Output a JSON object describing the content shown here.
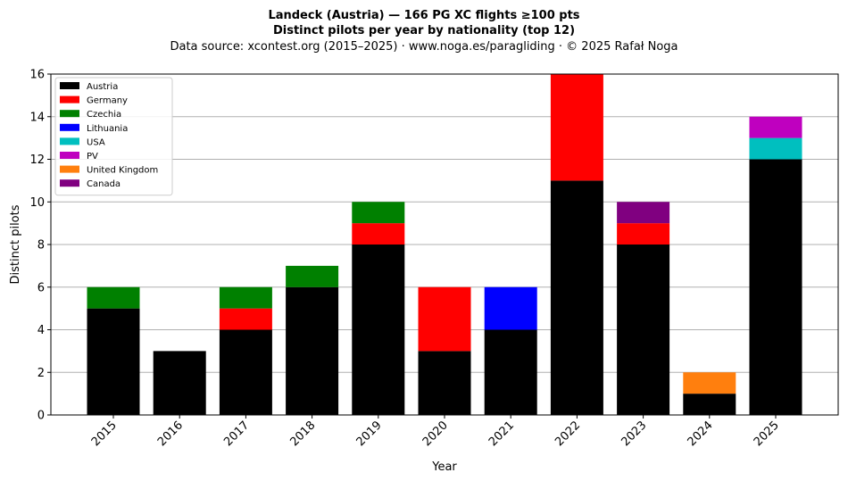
{
  "header": {
    "title_line1": "Landeck (Austria)  —  166 PG XC flights ≥100 pts",
    "title_line2": "Distinct pilots per year by nationality (top 12)",
    "subtitle": "Data source: xcontest.org (2015–2025)  ·  www.noga.es/paragliding  ·  © 2025 Rafał Noga"
  },
  "chart_data": {
    "type": "bar",
    "stacked": true,
    "title": "Landeck (Austria)  —  166 PG XC flights ≥100 pts",
    "subtitle": "Distinct pilots per year by nationality (top 12)",
    "xlabel": "Year",
    "ylabel": "Distinct pilots",
    "ylim": [
      0,
      16
    ],
    "yticks": [
      0,
      2,
      4,
      6,
      8,
      10,
      12,
      14,
      16
    ],
    "grid": "horizontal",
    "legend_position": "top-left",
    "categories": [
      "2015",
      "2016",
      "2017",
      "2018",
      "2019",
      "2020",
      "2021",
      "2022",
      "2023",
      "2024",
      "2025"
    ],
    "series": [
      {
        "name": "Austria",
        "color": "#000000",
        "values": [
          5,
          3,
          4,
          6,
          8,
          3,
          4,
          11,
          8,
          1,
          12
        ]
      },
      {
        "name": "Germany",
        "color": "#ff0000",
        "values": [
          0,
          0,
          1,
          0,
          1,
          3,
          0,
          5,
          1,
          0,
          0
        ]
      },
      {
        "name": "Czechia",
        "color": "#008000",
        "values": [
          1,
          0,
          1,
          1,
          1,
          0,
          0,
          0,
          0,
          0,
          0
        ]
      },
      {
        "name": "Lithuania",
        "color": "#0000ff",
        "values": [
          0,
          0,
          0,
          0,
          0,
          0,
          2,
          0,
          0,
          0,
          0
        ]
      },
      {
        "name": "USA",
        "color": "#00bfbf",
        "values": [
          0,
          0,
          0,
          0,
          0,
          0,
          0,
          0,
          0,
          0,
          1
        ]
      },
      {
        "name": "PV",
        "color": "#bf00bf",
        "values": [
          0,
          0,
          0,
          0,
          0,
          0,
          0,
          0,
          0,
          0,
          1
        ]
      },
      {
        "name": "United Kingdom",
        "color": "#ff7f0e",
        "values": [
          0,
          0,
          0,
          0,
          0,
          0,
          0,
          0,
          0,
          1,
          0
        ]
      },
      {
        "name": "Canada",
        "color": "#800080",
        "values": [
          0,
          0,
          0,
          0,
          0,
          0,
          0,
          0,
          1,
          0,
          0
        ]
      }
    ]
  }
}
